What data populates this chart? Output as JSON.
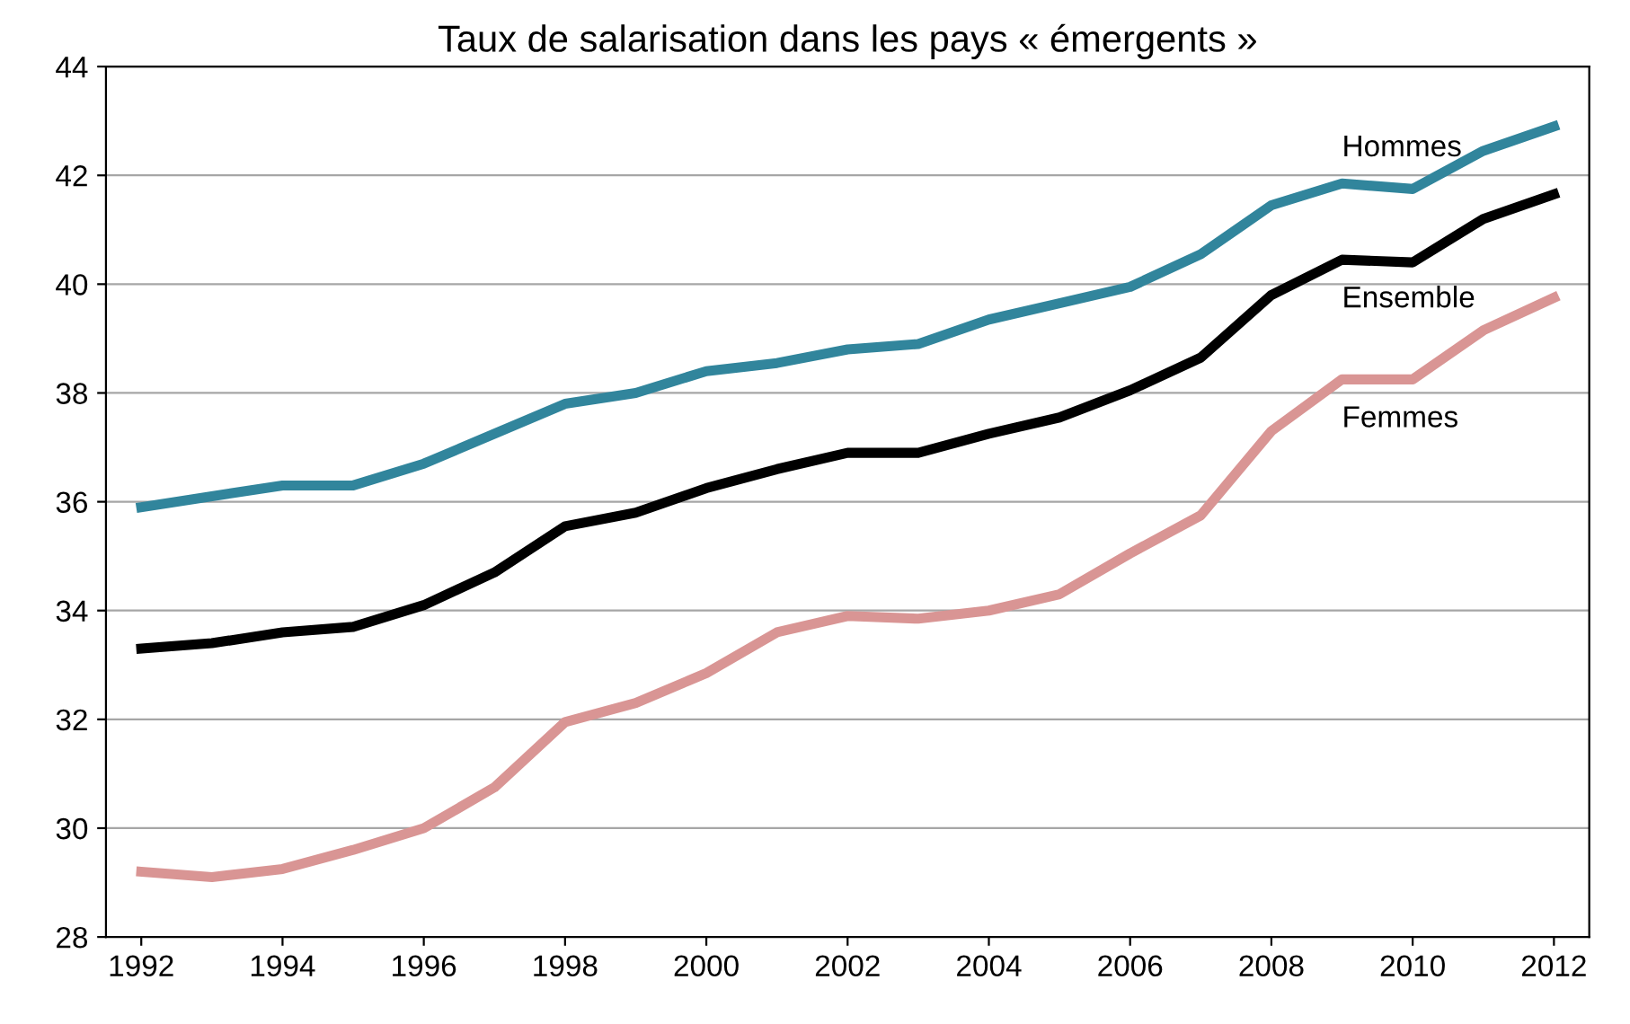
{
  "chart_data": {
    "type": "line",
    "title": "Taux de salarisation dans les pays « émergents »",
    "x": [
      1992,
      1993,
      1994,
      1995,
      1996,
      1997,
      1998,
      1999,
      2000,
      2001,
      2002,
      2003,
      2004,
      2005,
      2006,
      2007,
      2008,
      2009,
      2010,
      2011,
      2012
    ],
    "series": [
      {
        "name": "Hommes",
        "color": "#31859c",
        "values": [
          35.9,
          36.1,
          36.3,
          36.3,
          36.7,
          37.25,
          37.8,
          38.0,
          38.4,
          38.55,
          38.8,
          38.9,
          39.35,
          39.65,
          39.95,
          40.55,
          41.45,
          41.85,
          41.75,
          42.45,
          42.9
        ]
      },
      {
        "name": "Ensemble",
        "color": "#000000",
        "values": [
          33.3,
          33.4,
          33.6,
          33.7,
          34.1,
          34.7,
          35.55,
          35.8,
          36.25,
          36.6,
          36.9,
          36.9,
          37.25,
          37.55,
          38.05,
          38.65,
          39.8,
          40.45,
          40.4,
          41.2,
          41.65
        ]
      },
      {
        "name": "Femmes",
        "color": "#d99594",
        "values": [
          29.2,
          29.1,
          29.25,
          29.6,
          30.0,
          30.75,
          31.95,
          32.3,
          32.85,
          33.6,
          33.9,
          33.85,
          34.0,
          34.3,
          35.05,
          35.75,
          37.3,
          38.25,
          38.25,
          39.15,
          39.75
        ]
      }
    ],
    "xlim": [
      1991.5,
      2012.5
    ],
    "xticks": [
      1992,
      1994,
      1996,
      1998,
      2000,
      2002,
      2004,
      2006,
      2008,
      2010,
      2012
    ],
    "ylim": [
      28,
      44
    ],
    "yticks": [
      28,
      30,
      32,
      34,
      36,
      38,
      40,
      42,
      44
    ],
    "grid": "y",
    "legend": false,
    "marker": "none",
    "line_style": "solid"
  }
}
